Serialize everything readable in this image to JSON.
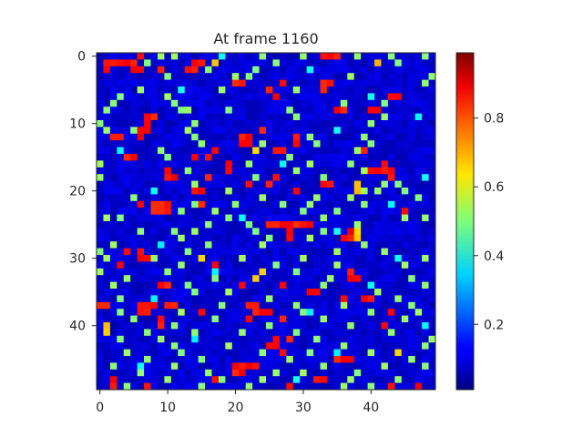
{
  "chart_data": {
    "type": "heatmap",
    "title": "At frame 1160",
    "xlabel": "",
    "ylabel": "",
    "grid_size": 50,
    "xlim": [
      -0.5,
      49.5
    ],
    "ylim": [
      49.5,
      -0.5
    ],
    "x_ticks": [
      0,
      10,
      20,
      30,
      40
    ],
    "y_ticks": [
      0,
      10,
      20,
      30,
      40
    ],
    "x_tick_labels": [
      "0",
      "10",
      "20",
      "30",
      "40"
    ],
    "y_tick_labels": [
      "0",
      "10",
      "20",
      "30",
      "40"
    ],
    "colormap": "jet",
    "value_range": [
      0.01,
      0.99
    ],
    "colorbar_ticks": [
      0.2,
      0.4,
      0.6,
      0.8
    ],
    "colorbar_tick_labels": [
      "0.2",
      "0.4",
      "0.6",
      "0.8"
    ],
    "background_level": 0.08,
    "hot_cells": [
      [
        0,
        6
      ],
      [
        0,
        33
      ],
      [
        0,
        34
      ],
      [
        0,
        35
      ],
      [
        1,
        1
      ],
      [
        1,
        2
      ],
      [
        1,
        3
      ],
      [
        1,
        4
      ],
      [
        1,
        5
      ],
      [
        1,
        14
      ],
      [
        1,
        15
      ],
      [
        2,
        1
      ],
      [
        2,
        5
      ],
      [
        2,
        6
      ],
      [
        2,
        9
      ],
      [
        2,
        13
      ],
      [
        2,
        14
      ],
      [
        4,
        20
      ],
      [
        4,
        21
      ],
      [
        4,
        27
      ],
      [
        4,
        33
      ],
      [
        4,
        34
      ],
      [
        5,
        25
      ],
      [
        5,
        33
      ],
      [
        6,
        26
      ],
      [
        6,
        43
      ],
      [
        6,
        44
      ],
      [
        8,
        35
      ],
      [
        8,
        36
      ],
      [
        8,
        40
      ],
      [
        8,
        41
      ],
      [
        9,
        7
      ],
      [
        9,
        8
      ],
      [
        10,
        7
      ],
      [
        11,
        6
      ],
      [
        11,
        7
      ],
      [
        11,
        24
      ],
      [
        12,
        2
      ],
      [
        12,
        3
      ],
      [
        12,
        6
      ],
      [
        12,
        21
      ],
      [
        12,
        22
      ],
      [
        12,
        29
      ],
      [
        13,
        21
      ],
      [
        13,
        22
      ],
      [
        13,
        29
      ],
      [
        14,
        17
      ],
      [
        14,
        26
      ],
      [
        14,
        27
      ],
      [
        14,
        39
      ],
      [
        15,
        4
      ],
      [
        15,
        5
      ],
      [
        15,
        14
      ],
      [
        15,
        16
      ],
      [
        16,
        19
      ],
      [
        16,
        42
      ],
      [
        17,
        10
      ],
      [
        17,
        19
      ],
      [
        17,
        40
      ],
      [
        17,
        41
      ],
      [
        17,
        42
      ],
      [
        17,
        43
      ],
      [
        18,
        10
      ],
      [
        18,
        11
      ],
      [
        18,
        16
      ],
      [
        18,
        26
      ],
      [
        18,
        43
      ],
      [
        19,
        22
      ],
      [
        19,
        25
      ],
      [
        19,
        33
      ],
      [
        19,
        34
      ],
      [
        20,
        14
      ],
      [
        20,
        15
      ],
      [
        20,
        29
      ],
      [
        22,
        6
      ],
      [
        22,
        8
      ],
      [
        22,
        9
      ],
      [
        22,
        10
      ],
      [
        22,
        15
      ],
      [
        23,
        8
      ],
      [
        23,
        9
      ],
      [
        23,
        10
      ],
      [
        23,
        45
      ],
      [
        25,
        25
      ],
      [
        25,
        26
      ],
      [
        25,
        27
      ],
      [
        25,
        28
      ],
      [
        25,
        29
      ],
      [
        25,
        30
      ],
      [
        25,
        31
      ],
      [
        26,
        28
      ],
      [
        26,
        37
      ],
      [
        27,
        28
      ],
      [
        27,
        36
      ],
      [
        27,
        37
      ],
      [
        29,
        4
      ],
      [
        29,
        6
      ],
      [
        30,
        6
      ],
      [
        30,
        7
      ],
      [
        31,
        3
      ],
      [
        31,
        17
      ],
      [
        32,
        37
      ],
      [
        33,
        37
      ],
      [
        33,
        38
      ],
      [
        34,
        9
      ],
      [
        34,
        10
      ],
      [
        34,
        21
      ],
      [
        34,
        27
      ],
      [
        35,
        31
      ],
      [
        35,
        32
      ],
      [
        36,
        36
      ],
      [
        36,
        39
      ],
      [
        36,
        40
      ],
      [
        37,
        0
      ],
      [
        37,
        1
      ],
      [
        37,
        6
      ],
      [
        37,
        7
      ],
      [
        37,
        8
      ],
      [
        37,
        10
      ],
      [
        37,
        11
      ],
      [
        37,
        22
      ],
      [
        37,
        23
      ],
      [
        38,
        6
      ],
      [
        38,
        7
      ],
      [
        38,
        15
      ],
      [
        38,
        23
      ],
      [
        38,
        24
      ],
      [
        38,
        25
      ],
      [
        38,
        43
      ],
      [
        39,
        9
      ],
      [
        39,
        22
      ],
      [
        39,
        27
      ],
      [
        40,
        9
      ],
      [
        40,
        42
      ],
      [
        42,
        26
      ],
      [
        42,
        28
      ],
      [
        43,
        25
      ],
      [
        43,
        26
      ],
      [
        44,
        27
      ],
      [
        45,
        35
      ],
      [
        45,
        36
      ],
      [
        45,
        37
      ],
      [
        46,
        20
      ],
      [
        46,
        21
      ],
      [
        46,
        22
      ],
      [
        46,
        23
      ],
      [
        47,
        20
      ],
      [
        47,
        21
      ],
      [
        48,
        2
      ],
      [
        48,
        17
      ],
      [
        48,
        32
      ],
      [
        48,
        33
      ],
      [
        49,
        2
      ],
      [
        49,
        7
      ],
      [
        49,
        28
      ],
      [
        49,
        43
      ],
      [
        49,
        47
      ]
    ],
    "warm_cells": [
      [
        1,
        17
      ],
      [
        1,
        41
      ],
      [
        14,
        23
      ],
      [
        19,
        38
      ],
      [
        20,
        38
      ],
      [
        26,
        38
      ],
      [
        27,
        38
      ],
      [
        30,
        15
      ],
      [
        32,
        24
      ],
      [
        33,
        23
      ],
      [
        40,
        1
      ],
      [
        41,
        1
      ],
      [
        44,
        44
      ]
    ],
    "mid_cells": [
      [
        0,
        9
      ],
      [
        0,
        11
      ],
      [
        0,
        24
      ],
      [
        0,
        30
      ],
      [
        0,
        38
      ],
      [
        0,
        43
      ],
      [
        0,
        48
      ],
      [
        1,
        7
      ],
      [
        1,
        26
      ],
      [
        1,
        44
      ],
      [
        2,
        16
      ],
      [
        2,
        23
      ],
      [
        3,
        10
      ],
      [
        3,
        20
      ],
      [
        3,
        22
      ],
      [
        3,
        37
      ],
      [
        3,
        49
      ],
      [
        4,
        48
      ],
      [
        5,
        6
      ],
      [
        5,
        18
      ],
      [
        5,
        29
      ],
      [
        6,
        3
      ],
      [
        6,
        10
      ],
      [
        7,
        2
      ],
      [
        7,
        11
      ],
      [
        7,
        36
      ],
      [
        7,
        42
      ],
      [
        8,
        1
      ],
      [
        8,
        12
      ],
      [
        8,
        13
      ],
      [
        8,
        19
      ],
      [
        8,
        28
      ],
      [
        8,
        41
      ],
      [
        9,
        29
      ],
      [
        9,
        42
      ],
      [
        10,
        0
      ],
      [
        10,
        14
      ],
      [
        10,
        40
      ],
      [
        11,
        1
      ],
      [
        11,
        5
      ],
      [
        11,
        13
      ],
      [
        12,
        14
      ],
      [
        12,
        31
      ],
      [
        12,
        39
      ],
      [
        13,
        15
      ],
      [
        13,
        24
      ],
      [
        13,
        32
      ],
      [
        13,
        40
      ],
      [
        14,
        9
      ],
      [
        14,
        38
      ],
      [
        15,
        10
      ],
      [
        15,
        28
      ],
      [
        16,
        0
      ],
      [
        16,
        22
      ],
      [
        16,
        31
      ],
      [
        16,
        37
      ],
      [
        17,
        13
      ],
      [
        17,
        29
      ],
      [
        17,
        39
      ],
      [
        18,
        0
      ],
      [
        18,
        23
      ],
      [
        18,
        33
      ],
      [
        19,
        14
      ],
      [
        19,
        42
      ],
      [
        19,
        44
      ],
      [
        20,
        19
      ],
      [
        20,
        39
      ],
      [
        20,
        41
      ],
      [
        20,
        45
      ],
      [
        21,
        5
      ],
      [
        21,
        24
      ],
      [
        21,
        32
      ],
      [
        21,
        37
      ],
      [
        21,
        47
      ],
      [
        22,
        14
      ],
      [
        22,
        20
      ],
      [
        22,
        27
      ],
      [
        22,
        31
      ],
      [
        22,
        39
      ],
      [
        23,
        12
      ],
      [
        23,
        17
      ],
      [
        23,
        30
      ],
      [
        23,
        35
      ],
      [
        24,
        1
      ],
      [
        24,
        3
      ],
      [
        24,
        19
      ],
      [
        24,
        33
      ],
      [
        24,
        45
      ],
      [
        24,
        48
      ],
      [
        25,
        16
      ],
      [
        25,
        22
      ],
      [
        25,
        38
      ],
      [
        26,
        6
      ],
      [
        26,
        11
      ],
      [
        26,
        14
      ],
      [
        26,
        23
      ],
      [
        26,
        33
      ],
      [
        27,
        12
      ],
      [
        27,
        25
      ],
      [
        27,
        31
      ],
      [
        28,
        2
      ],
      [
        28,
        16
      ],
      [
        28,
        24
      ],
      [
        28,
        39
      ],
      [
        29,
        0
      ],
      [
        29,
        13
      ],
      [
        29,
        35
      ],
      [
        29,
        42
      ],
      [
        30,
        1
      ],
      [
        30,
        8
      ],
      [
        30,
        21
      ],
      [
        30,
        30
      ],
      [
        30,
        48
      ],
      [
        31,
        12
      ],
      [
        31,
        26
      ],
      [
        31,
        35
      ],
      [
        31,
        45
      ],
      [
        32,
        0
      ],
      [
        32,
        10
      ],
      [
        32,
        29
      ],
      [
        33,
        4
      ],
      [
        33,
        17
      ],
      [
        33,
        34
      ],
      [
        33,
        46
      ],
      [
        34,
        2
      ],
      [
        34,
        13
      ],
      [
        34,
        33
      ],
      [
        34,
        48
      ],
      [
        35,
        14
      ],
      [
        35,
        19
      ],
      [
        35,
        41
      ],
      [
        36,
        3
      ],
      [
        36,
        25
      ],
      [
        36,
        44
      ],
      [
        37,
        18
      ],
      [
        37,
        29
      ],
      [
        37,
        36
      ],
      [
        37,
        46
      ],
      [
        38,
        3
      ],
      [
        38,
        12
      ],
      [
        38,
        30
      ],
      [
        38,
        40
      ],
      [
        38,
        47
      ],
      [
        39,
        5
      ],
      [
        39,
        17
      ],
      [
        39,
        33
      ],
      [
        39,
        45
      ],
      [
        40,
        11
      ],
      [
        40,
        25
      ],
      [
        40,
        37
      ],
      [
        41,
        7
      ],
      [
        41,
        14
      ],
      [
        41,
        21
      ],
      [
        41,
        29
      ],
      [
        41,
        43
      ],
      [
        42,
        3
      ],
      [
        42,
        9
      ],
      [
        42,
        32
      ],
      [
        42,
        49
      ],
      [
        43,
        11
      ],
      [
        43,
        19
      ],
      [
        43,
        36
      ],
      [
        43,
        48
      ],
      [
        44,
        4
      ],
      [
        44,
        12
      ],
      [
        44,
        24
      ],
      [
        44,
        31
      ],
      [
        44,
        40
      ],
      [
        45,
        7
      ],
      [
        45,
        15
      ],
      [
        45,
        28
      ],
      [
        45,
        46
      ],
      [
        46,
        2
      ],
      [
        46,
        11
      ],
      [
        46,
        33
      ],
      [
        46,
        42
      ],
      [
        46,
        48
      ],
      [
        47,
        6
      ],
      [
        47,
        16
      ],
      [
        47,
        26
      ],
      [
        47,
        30
      ],
      [
        47,
        38
      ],
      [
        48,
        10
      ],
      [
        48,
        18
      ],
      [
        48,
        24
      ],
      [
        48,
        37
      ],
      [
        48,
        44
      ],
      [
        49,
        4
      ],
      [
        49,
        15
      ],
      [
        49,
        22
      ],
      [
        49,
        36
      ],
      [
        49,
        40
      ]
    ],
    "cool_cells": [
      [
        0,
        18
      ],
      [
        2,
        31
      ],
      [
        5,
        12
      ],
      [
        6,
        40
      ],
      [
        9,
        47
      ],
      [
        11,
        35
      ],
      [
        14,
        3
      ],
      [
        16,
        27
      ],
      [
        18,
        48
      ],
      [
        20,
        8
      ],
      [
        22,
        43
      ],
      [
        24,
        21
      ],
      [
        26,
        35
      ],
      [
        28,
        9
      ],
      [
        30,
        44
      ],
      [
        32,
        17
      ],
      [
        34,
        40
      ],
      [
        36,
        8
      ],
      [
        38,
        31
      ],
      [
        40,
        48
      ],
      [
        42,
        14
      ],
      [
        44,
        35
      ],
      [
        46,
        6
      ],
      [
        48,
        29
      ]
    ]
  }
}
